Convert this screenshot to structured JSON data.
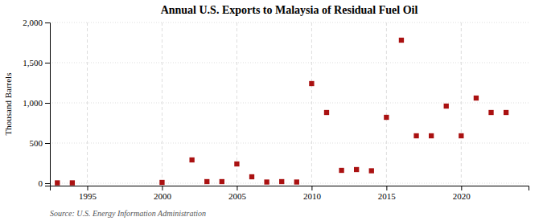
{
  "chart_data": {
    "type": "scatter",
    "title": "Annual U.S. Exports to Malaysia of Residual Fuel Oil",
    "ylabel": "Thousand Barrels",
    "annotations": [
      "Source: U.S. Energy Information Administration"
    ],
    "x": [
      1993,
      1994,
      2000,
      2002,
      2003,
      2004,
      2005,
      2006,
      2007,
      2008,
      2009,
      2010,
      2011,
      2012,
      2013,
      2014,
      2015,
      2016,
      2017,
      2018,
      2019,
      2020,
      2021,
      2022,
      2023
    ],
    "values": [
      5,
      5,
      10,
      290,
      20,
      20,
      240,
      80,
      15,
      20,
      15,
      1240,
      880,
      160,
      170,
      155,
      820,
      1780,
      590,
      590,
      960,
      590,
      1060,
      880,
      880
    ],
    "color": "#aa1111",
    "marker": "square",
    "xlim": [
      1992.5,
      2024.5
    ],
    "xticks": [
      1995,
      2000,
      2005,
      2010,
      2015,
      2020
    ],
    "ylim": [
      -30,
      2000
    ],
    "yticks": [
      0,
      500,
      {
        "value": 1000,
        "label": "1,000"
      },
      {
        "value": 1500,
        "label": "1,500"
      },
      {
        "value": 2000,
        "label": "2,000"
      }
    ],
    "grid": true
  }
}
